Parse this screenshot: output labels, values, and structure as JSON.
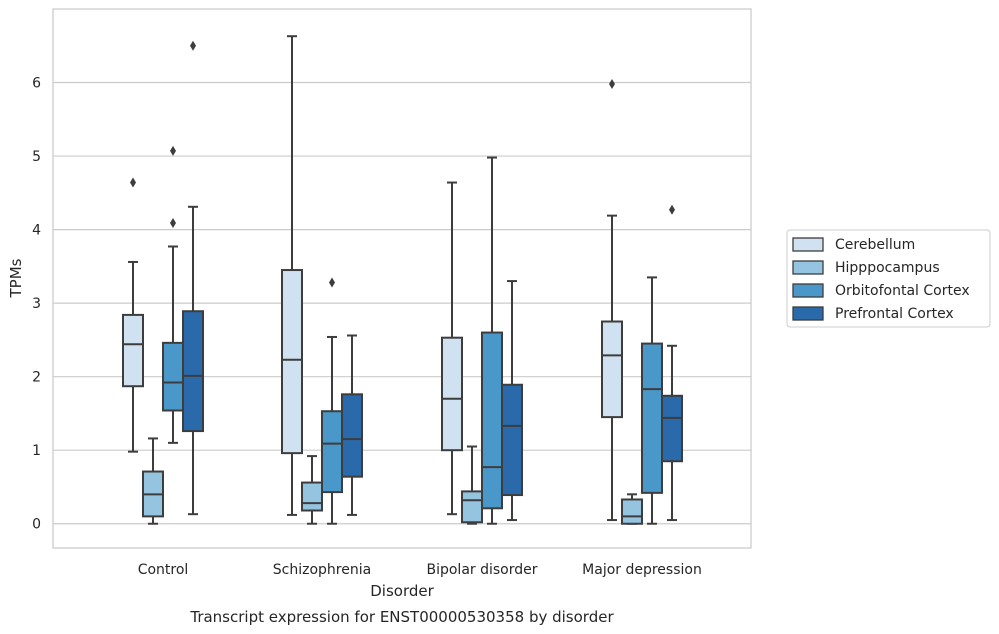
{
  "chart_data": {
    "type": "boxplot",
    "title": "Transcript expression for ENST00000530358 by disorder",
    "xlabel": "Disorder",
    "ylabel": "TPMs",
    "categories": [
      "Control",
      "Schizophrenia",
      "Bipolar disorder",
      "Major depression"
    ],
    "yticks": [
      0,
      1,
      2,
      3,
      4,
      5,
      6
    ],
    "ylim": [
      -0.33,
      7.0
    ],
    "grid": true,
    "legend_position": "right",
    "series": [
      {
        "name": "Cerebellum",
        "color": "#d0e1f2",
        "boxes": [
          {
            "whisker_low": 0.98,
            "q1": 1.87,
            "median": 2.44,
            "q3": 2.84,
            "whisker_high": 3.56,
            "outliers": [
              4.64
            ]
          },
          {
            "whisker_low": 0.12,
            "q1": 0.96,
            "median": 2.23,
            "q3": 3.45,
            "whisker_high": 6.63,
            "outliers": []
          },
          {
            "whisker_low": 0.13,
            "q1": 1.0,
            "median": 1.7,
            "q3": 2.53,
            "whisker_high": 4.64,
            "outliers": []
          },
          {
            "whisker_low": 0.05,
            "q1": 1.45,
            "median": 2.29,
            "q3": 2.75,
            "whisker_high": 4.19,
            "outliers": [
              5.98
            ]
          }
        ]
      },
      {
        "name": "Hipppocampus",
        "color": "#94c4df",
        "boxes": [
          {
            "whisker_low": 0.0,
            "q1": 0.1,
            "median": 0.4,
            "q3": 0.71,
            "whisker_high": 1.16,
            "outliers": []
          },
          {
            "whisker_low": 0.0,
            "q1": 0.18,
            "median": 0.28,
            "q3": 0.56,
            "whisker_high": 0.92,
            "outliers": []
          },
          {
            "whisker_low": 0.0,
            "q1": 0.02,
            "median": 0.32,
            "q3": 0.44,
            "whisker_high": 1.05,
            "outliers": []
          },
          {
            "whisker_low": 0.0,
            "q1": 0.0,
            "median": 0.1,
            "q3": 0.33,
            "whisker_high": 0.4,
            "outliers": []
          }
        ]
      },
      {
        "name": "Orbitofontal Cortex",
        "color": "#4a98c9",
        "boxes": [
          {
            "whisker_low": 1.1,
            "q1": 1.54,
            "median": 1.92,
            "q3": 2.46,
            "whisker_high": 3.77,
            "outliers": [
              4.09,
              5.07
            ]
          },
          {
            "whisker_low": 0.0,
            "q1": 0.43,
            "median": 1.09,
            "q3": 1.53,
            "whisker_high": 2.54,
            "outliers": [
              3.28
            ]
          },
          {
            "whisker_low": 0.0,
            "q1": 0.21,
            "median": 0.77,
            "q3": 2.6,
            "whisker_high": 4.98,
            "outliers": []
          },
          {
            "whisker_low": 0.0,
            "q1": 0.42,
            "median": 1.83,
            "q3": 2.45,
            "whisker_high": 3.35,
            "outliers": []
          }
        ]
      },
      {
        "name": "Prefrontal Cortex",
        "color": "#2a6aab",
        "boxes": [
          {
            "whisker_low": 0.13,
            "q1": 1.26,
            "median": 2.01,
            "q3": 2.89,
            "whisker_high": 4.31,
            "outliers": [
              6.5
            ]
          },
          {
            "whisker_low": 0.12,
            "q1": 0.64,
            "median": 1.15,
            "q3": 1.76,
            "whisker_high": 2.56,
            "outliers": []
          },
          {
            "whisker_low": 0.05,
            "q1": 0.39,
            "median": 1.33,
            "q3": 1.89,
            "whisker_high": 3.3,
            "outliers": []
          },
          {
            "whisker_low": 0.05,
            "q1": 0.85,
            "median": 1.44,
            "q3": 1.74,
            "whisker_high": 2.42,
            "outliers": [
              4.27
            ]
          }
        ]
      }
    ]
  },
  "colors": {
    "grid": "#cccccc",
    "axes_edge": "#cccccc",
    "box_edge": "#3d3d3d"
  }
}
